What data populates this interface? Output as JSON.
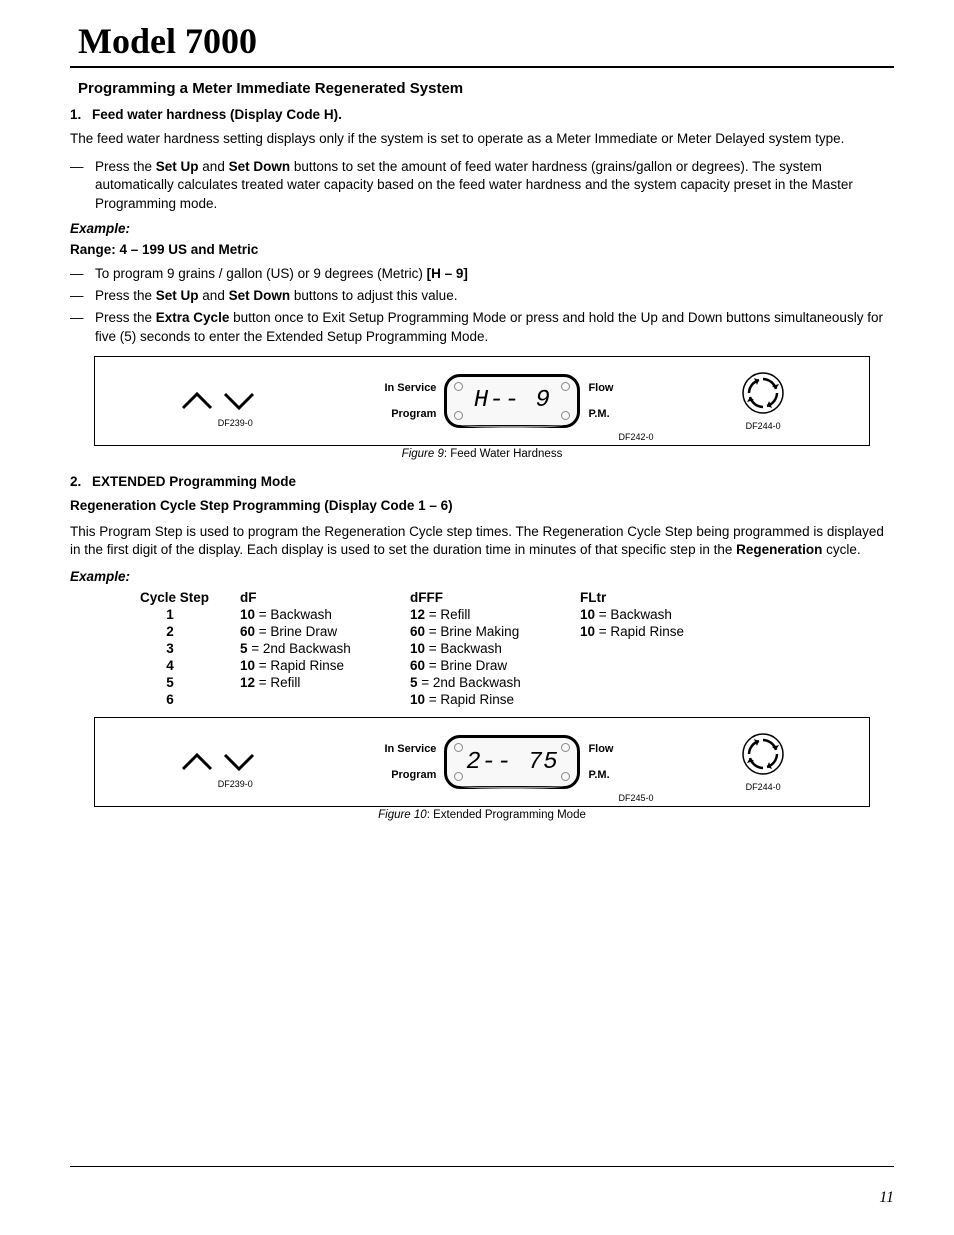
{
  "title": "Model 7000",
  "section_heading": "Programming a Meter Immediate Regenerated System",
  "step1": {
    "number": "1.",
    "title": "Feed water hardness (Display Code H).",
    "para": "The feed water hardness setting displays only if the system is set to operate as a Meter Immediate or Meter Delayed system type.",
    "dash1_pre": "Press the ",
    "dash1_b1": "Set Up",
    "dash1_mid": " and ",
    "dash1_b2": "Set Down",
    "dash1_post": " buttons to set the amount of feed water hardness (grains/gallon or degrees). The system automatically calculates treated water capacity based on the feed water hardness and the system capacity preset in the Master Programming mode.",
    "example_label": "Example:",
    "range_line": "Range:    4 – 199    US and Metric",
    "dash2_pre": "To program 9 grains / gallon (US) or 9 degrees (Metric) ",
    "dash2_bold": "[H – 9]",
    "dash3_pre": "Press the ",
    "dash3_b1": "Set Up",
    "dash3_mid": " and ",
    "dash3_b2": "Set Down",
    "dash3_post": " buttons to adjust this value.",
    "dash4_pre": "Press the ",
    "dash4_b1": "Extra Cycle",
    "dash4_post": " button once to Exit Setup Programming Mode or press and hold the Up and Down buttons simultaneously for five (5) seconds to enter the Extended Setup Programming Mode."
  },
  "figure9": {
    "arrow_label": "DF239-0",
    "lcd_left_top": "In Service",
    "lcd_left_bottom": "Program",
    "lcd_right_top": "Flow",
    "lcd_right_bottom": "P.M.",
    "lcd_text": "H-- 9",
    "lcd_small": "DF242-0",
    "cycle_label": "DF244-0",
    "caption_title": "Figure 9",
    "caption_rest": ": Feed Water Hardness"
  },
  "step2": {
    "number": "2.",
    "title": "EXTENDED Programming Mode",
    "subtitle": "Regeneration Cycle Step Programming (Display Code 1 – 6)",
    "para_pre": "This Program Step is used to program the Regeneration Cycle step times. The Regeneration Cycle Step being programmed is displayed in the first digit of the display. Each display is used to set the duration time in minutes of that specific step in the ",
    "para_bold": "Regeneration",
    "para_post": " cycle.",
    "example_label": "Example:"
  },
  "cycle_table": {
    "head_step": "Cycle Step",
    "head_df": "dF",
    "head_dfff": "dFFF",
    "head_fltr": "FLtr",
    "rows": [
      {
        "step": "1",
        "df_v": "10",
        "df_t": " = Backwash",
        "dfff_v": "12",
        "dfff_t": " = Refill",
        "fltr_v": "10",
        "fltr_t": " = Backwash"
      },
      {
        "step": "2",
        "df_v": "60",
        "df_t": " = Brine Draw",
        "dfff_v": "60",
        "dfff_t": " = Brine Making",
        "fltr_v": "10",
        "fltr_t": " = Rapid Rinse"
      },
      {
        "step": "3",
        "df_v": "5",
        "df_t": " = 2nd Backwash",
        "dfff_v": "10",
        "dfff_t": " = Backwash",
        "fltr_v": "",
        "fltr_t": ""
      },
      {
        "step": "4",
        "df_v": "10",
        "df_t": " = Rapid Rinse",
        "dfff_v": "60",
        "dfff_t": " = Brine Draw",
        "fltr_v": "",
        "fltr_t": ""
      },
      {
        "step": "5",
        "df_v": "12",
        "df_t": " = Refill",
        "dfff_v": "5",
        "dfff_t": " = 2nd Backwash",
        "fltr_v": "",
        "fltr_t": ""
      },
      {
        "step": "6",
        "df_v": "",
        "df_t": "",
        "dfff_v": "10",
        "dfff_t": " = Rapid Rinse",
        "fltr_v": "",
        "fltr_t": ""
      }
    ]
  },
  "figure10": {
    "arrow_label": "DF239-0",
    "lcd_left_top": "In Service",
    "lcd_left_bottom": "Program",
    "lcd_right_top": "Flow",
    "lcd_right_bottom": "P.M.",
    "lcd_text": "2-- 75",
    "lcd_small": "DF245-0",
    "cycle_label": "DF244-0",
    "caption_title": "Figure 10",
    "caption_rest": ": Extended Programming Mode"
  },
  "page_number": "11"
}
